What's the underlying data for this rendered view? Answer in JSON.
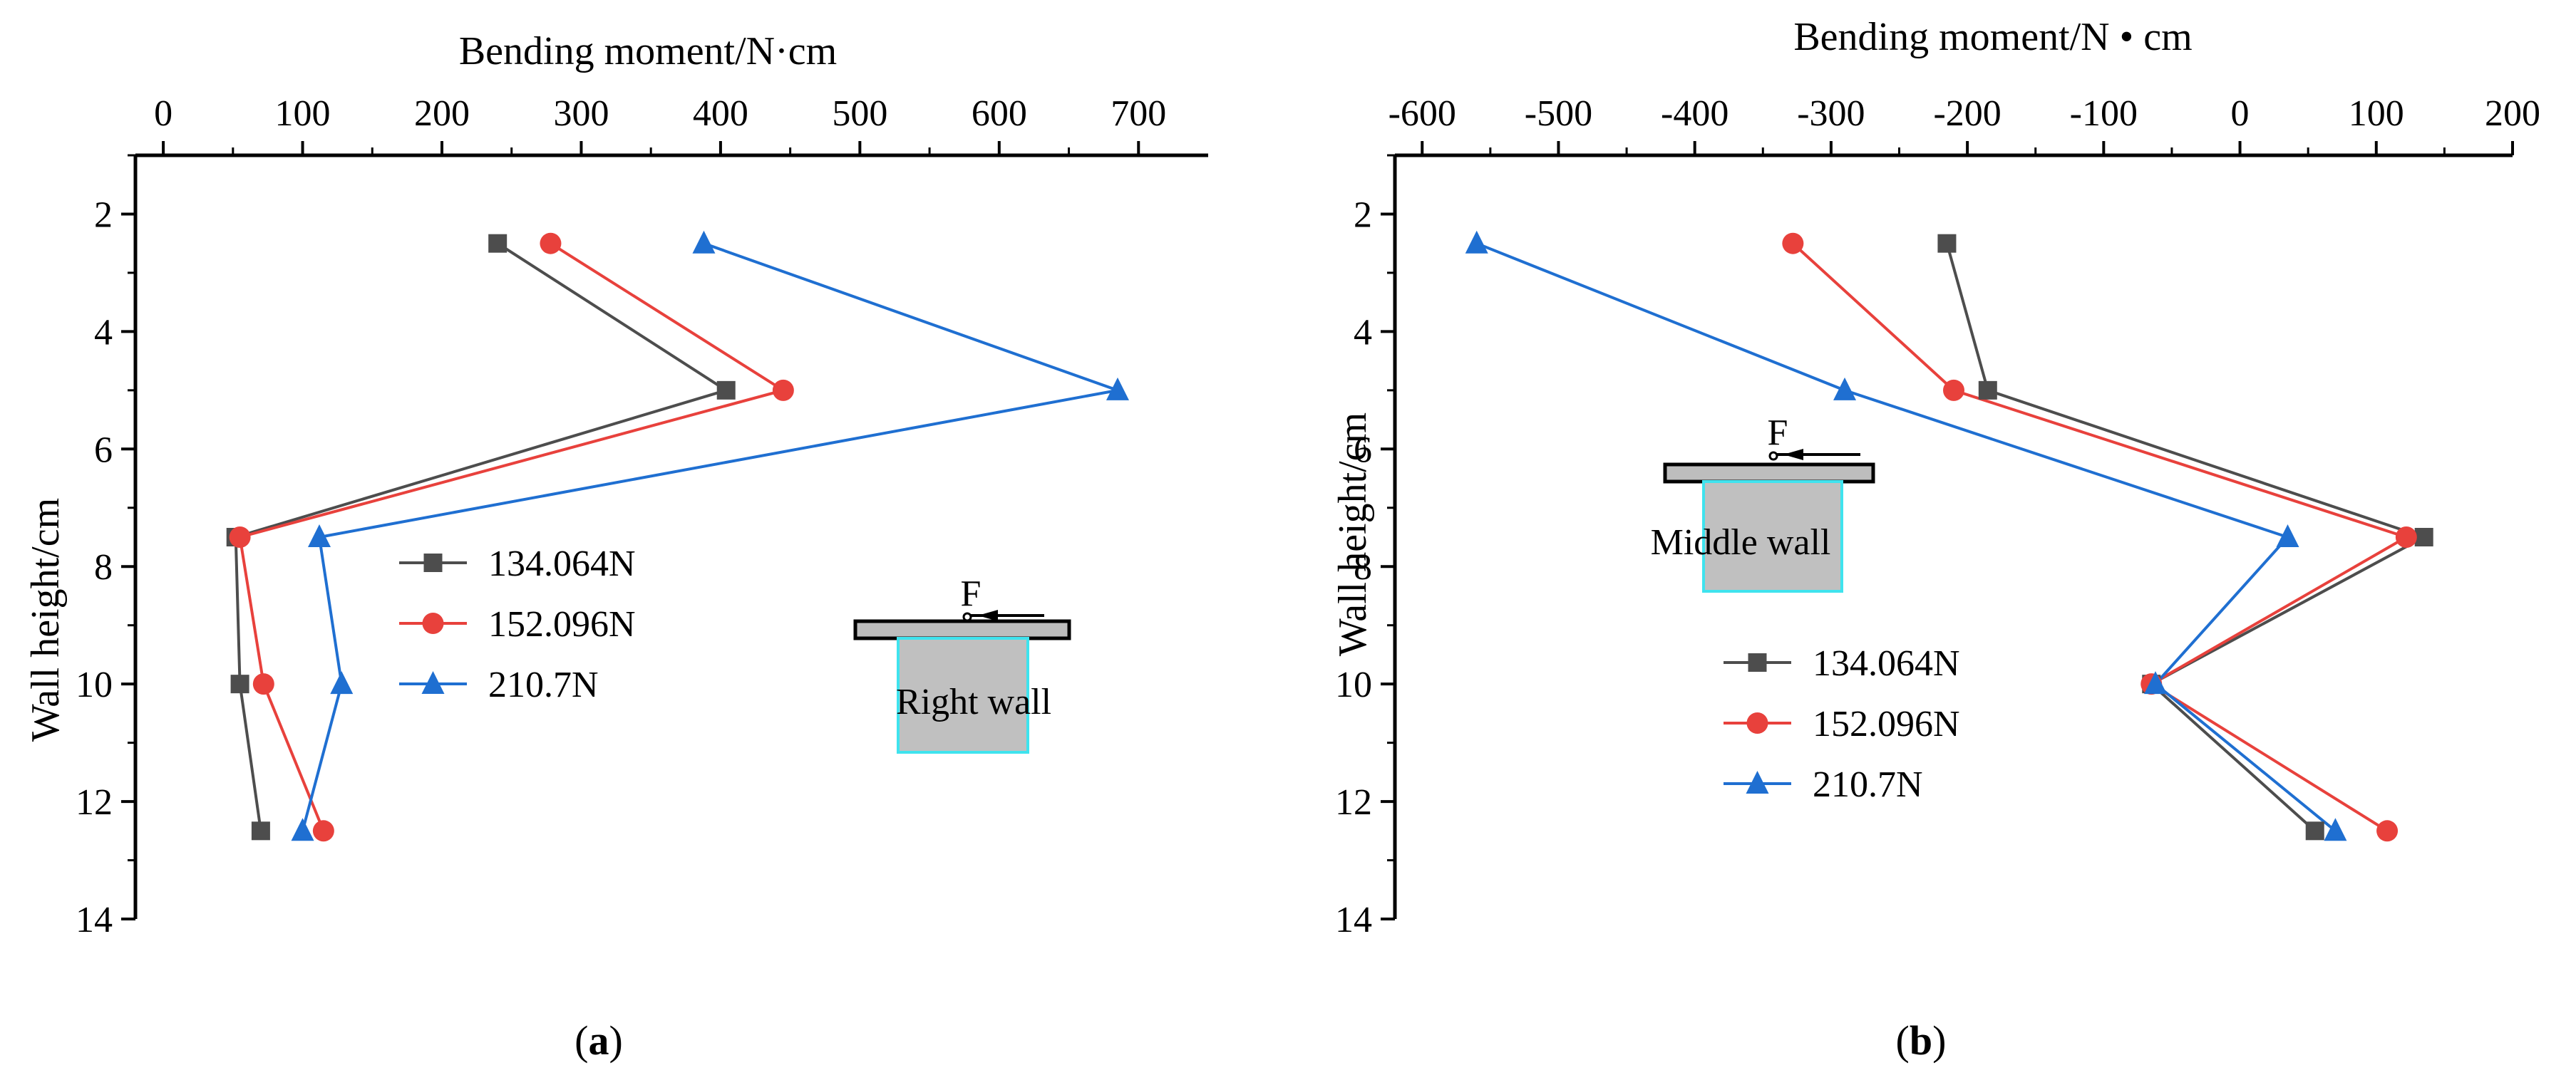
{
  "chart_data": [
    {
      "type": "line",
      "panel_label": "a",
      "title": "",
      "xlabel": "Bending moment/N·cm",
      "ylabel": "Wall height/cm",
      "xlim": [
        -20,
        750
      ],
      "ylim": [
        1,
        14
      ],
      "x_axis_position": "top",
      "y_inverted": true,
      "xticks": [
        0,
        100,
        200,
        300,
        400,
        500,
        600,
        700
      ],
      "yticks": [
        2,
        4,
        6,
        8,
        10,
        12,
        14
      ],
      "xtick_labels": [
        "0",
        "100",
        "200",
        "300",
        "400",
        "500",
        "600",
        "700"
      ],
      "ytick_labels": [
        "2",
        "4",
        "6",
        "8",
        "10",
        "12",
        "14"
      ],
      "series": [
        {
          "name": "134.064N",
          "color": "#4d4d4d",
          "marker": "square",
          "x": [
            240,
            404,
            52,
            55,
            70
          ],
          "y": [
            2.5,
            5,
            7.5,
            10,
            12.5
          ]
        },
        {
          "name": "152.096N",
          "color": "#e8413c",
          "marker": "circle",
          "x": [
            278,
            445,
            55,
            72,
            115
          ],
          "y": [
            2.5,
            5,
            7.5,
            10,
            12.5
          ]
        },
        {
          "name": "210.7N",
          "color": "#1f6fd1",
          "marker": "triangle",
          "x": [
            388,
            685,
            112,
            128,
            100
          ],
          "y": [
            2.5,
            5,
            7.5,
            10,
            12.5
          ]
        }
      ],
      "legend_position": "center",
      "inset": {
        "force_label": "F",
        "wall_label": "Right wall"
      }
    },
    {
      "type": "line",
      "panel_label": "b",
      "title": "",
      "xlabel": "Bending moment/N • cm",
      "ylabel": "Wall height/cm",
      "xlim": [
        -620,
        200
      ],
      "ylim": [
        1,
        14
      ],
      "x_axis_position": "top",
      "y_inverted": true,
      "xticks": [
        -600,
        -500,
        -400,
        -300,
        -200,
        -100,
        0,
        100,
        200
      ],
      "yticks": [
        2,
        4,
        6,
        8,
        10,
        12,
        14
      ],
      "xtick_labels": [
        "-600",
        "-500",
        "-400",
        "-300",
        "-200",
        "-100",
        "0",
        "100",
        "200"
      ],
      "ytick_labels": [
        "2",
        "4",
        "6",
        "8",
        "10",
        "12",
        "14"
      ],
      "series": [
        {
          "name": "134.064N",
          "color": "#4d4d4d",
          "marker": "square",
          "x": [
            -215,
            -185,
            135,
            -65,
            55
          ],
          "y": [
            2.5,
            5,
            7.5,
            10,
            12.5
          ]
        },
        {
          "name": "152.096N",
          "color": "#e8413c",
          "marker": "circle",
          "x": [
            -328,
            -210,
            122,
            -65,
            108
          ],
          "y": [
            2.5,
            5,
            7.5,
            10,
            12.5
          ]
        },
        {
          "name": "210.7N",
          "color": "#1f6fd1",
          "marker": "triangle",
          "x": [
            -560,
            -290,
            35,
            -62,
            70
          ],
          "y": [
            2.5,
            5,
            7.5,
            10,
            12.5
          ]
        }
      ],
      "legend_position": "bottom-left",
      "inset": {
        "force_label": "F",
        "wall_label": "Middle wall"
      }
    }
  ]
}
